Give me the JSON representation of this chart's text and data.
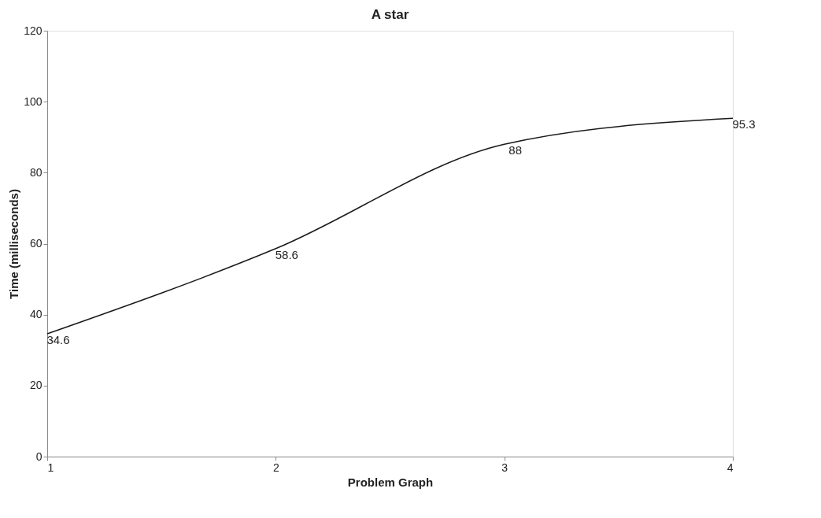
{
  "chart_data": {
    "type": "line",
    "title": "A star",
    "xlabel": "Problem Graph",
    "ylabel": "Time (milliseconds)",
    "x": [
      1,
      2,
      3,
      4
    ],
    "series": [
      {
        "color": "#1a1a1a",
        "values": [
          34.6,
          58.6,
          88,
          95.3
        ]
      }
    ],
    "xlim": [
      1,
      4
    ],
    "xticks": [
      1,
      2,
      3,
      4
    ],
    "ylim": [
      0,
      120
    ],
    "yticks": [
      0,
      20,
      40,
      60,
      80,
      100,
      120
    ],
    "data_labels": true,
    "grid": false,
    "marker": "none",
    "line_style": "solid"
  }
}
